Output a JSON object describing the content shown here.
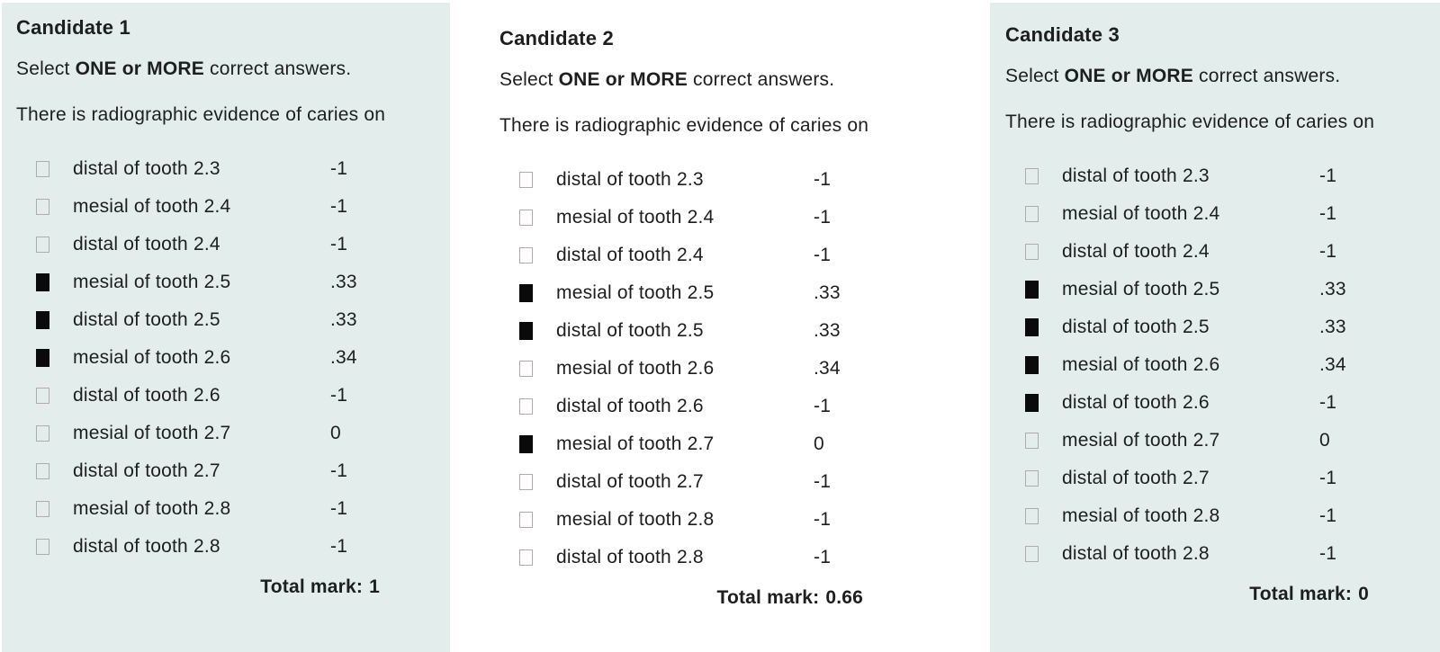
{
  "colors": {
    "panel_background": "#e2edec",
    "page_background": "#ffffff",
    "text": "#1e1e1e",
    "checkbox_border": "#b3abaa",
    "checkbox_checked_fill": "#0a0a0a"
  },
  "instruction": {
    "prefix": "Select ",
    "emphasis": "ONE or MORE",
    "suffix": " correct answers."
  },
  "question": "There is radiographic evidence of caries on",
  "options": [
    {
      "label": "distal of tooth 2.3",
      "mark": "-1"
    },
    {
      "label": "mesial of tooth 2.4",
      "mark": "-1"
    },
    {
      "label": "distal of tooth 2.4",
      "mark": "-1"
    },
    {
      "label": "mesial of tooth 2.5",
      "mark": ".33"
    },
    {
      "label": "distal of tooth 2.5",
      "mark": ".33"
    },
    {
      "label": "mesial of tooth 2.6",
      "mark": ".34"
    },
    {
      "label": "distal of tooth 2.6",
      "mark": "-1"
    },
    {
      "label": "mesial of tooth 2.7",
      "mark": "0"
    },
    {
      "label": "distal of tooth 2.7",
      "mark": "-1"
    },
    {
      "label": "mesial of tooth 2.8",
      "mark": "-1"
    },
    {
      "label": "distal of tooth 2.8",
      "mark": "-1"
    }
  ],
  "candidates": [
    {
      "title": "Candidate 1",
      "checks": [
        "unchecked",
        "unchecked",
        "unchecked",
        "checked",
        "checked",
        "checked",
        "unchecked",
        "unchecked",
        "unchecked",
        "unchecked",
        "unchecked"
      ],
      "total_label": "Total mark:",
      "total_value": "1"
    },
    {
      "title": "Candidate 2",
      "checks": [
        "unchecked",
        "unchecked",
        "unchecked",
        "checked",
        "checked",
        "unchecked",
        "unchecked",
        "checked",
        "unchecked",
        "unchecked",
        "unchecked"
      ],
      "total_label": "Total mark:",
      "total_value": "0.66"
    },
    {
      "title": "Candidate 3",
      "checks": [
        "unchecked",
        "unchecked",
        "unchecked",
        "checked",
        "checked",
        "checked",
        "checked",
        "unchecked",
        "unchecked",
        "unchecked",
        "unchecked"
      ],
      "total_label": "Total mark:",
      "total_value": "0"
    }
  ]
}
